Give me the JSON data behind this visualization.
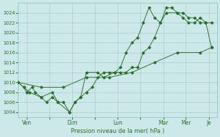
{
  "background_color": "#cce8e8",
  "grid_color": "#aacccc",
  "line_color": "#2d6e2d",
  "xlabel": "Pression niveau de la mer( hPa )",
  "ylim": [
    1003,
    1026
  ],
  "ytick_min": 1004,
  "ytick_max": 1024,
  "ytick_step": 2,
  "xtick_positions": [
    0.27,
    1.0,
    1.73,
    2.45,
    3.18,
    3.91,
    4.64,
    5.36,
    6.09
  ],
  "xtick_labels": [
    "Ven",
    "",
    "Dim",
    "",
    "Lun",
    "",
    "Mar",
    "Mer",
    "Je"
  ],
  "xlim": [
    0,
    6.36
  ],
  "series1_x": [
    0.0,
    0.18,
    0.27,
    0.45,
    0.55,
    0.73,
    0.91,
    1.09,
    1.27,
    1.45,
    1.64,
    1.82,
    2.0,
    2.18,
    2.36,
    2.55,
    2.73,
    2.91,
    3.09,
    3.27,
    3.45,
    3.64,
    3.82,
    4.0,
    4.18,
    4.36,
    4.55,
    4.73,
    4.91,
    5.09,
    5.27,
    5.45,
    5.64,
    5.82,
    6.0,
    6.18
  ],
  "series1_y": [
    1010,
    1009,
    1008,
    1009,
    1008,
    1007,
    1006,
    1007,
    1006,
    1006,
    1004,
    1006,
    1007,
    1008,
    1009,
    1011,
    1012,
    1012,
    1012,
    1012,
    1012,
    1013,
    1013,
    1016,
    1017,
    1019,
    1022,
    1025,
    1025,
    1024,
    1024,
    1023,
    1023,
    1022,
    1022,
    1022
  ],
  "series2_x": [
    0.0,
    0.18,
    0.36,
    0.73,
    1.09,
    1.27,
    1.64,
    1.82,
    2.0,
    2.18,
    2.55,
    2.73,
    3.09,
    3.27,
    3.45,
    3.64,
    3.82,
    4.0,
    4.18,
    4.36,
    4.55,
    4.73,
    5.09,
    5.27,
    5.45,
    5.64,
    5.82,
    6.0,
    6.18
  ],
  "series2_y": [
    1010,
    1009,
    1008,
    1007,
    1008,
    1006,
    1004,
    1006,
    1007,
    1012,
    1012,
    1011,
    1012,
    1013,
    1016,
    1018,
    1019,
    1022,
    1025,
    1023,
    1022,
    1024,
    1024,
    1023,
    1022,
    1022,
    1023,
    1022,
    1017
  ],
  "series3_x": [
    0.0,
    0.73,
    1.45,
    2.18,
    2.91,
    3.64,
    4.36,
    5.09,
    5.82,
    6.18
  ],
  "series3_y": [
    1010,
    1009,
    1009,
    1011,
    1011,
    1012,
    1014,
    1016,
    1016,
    1017
  ]
}
